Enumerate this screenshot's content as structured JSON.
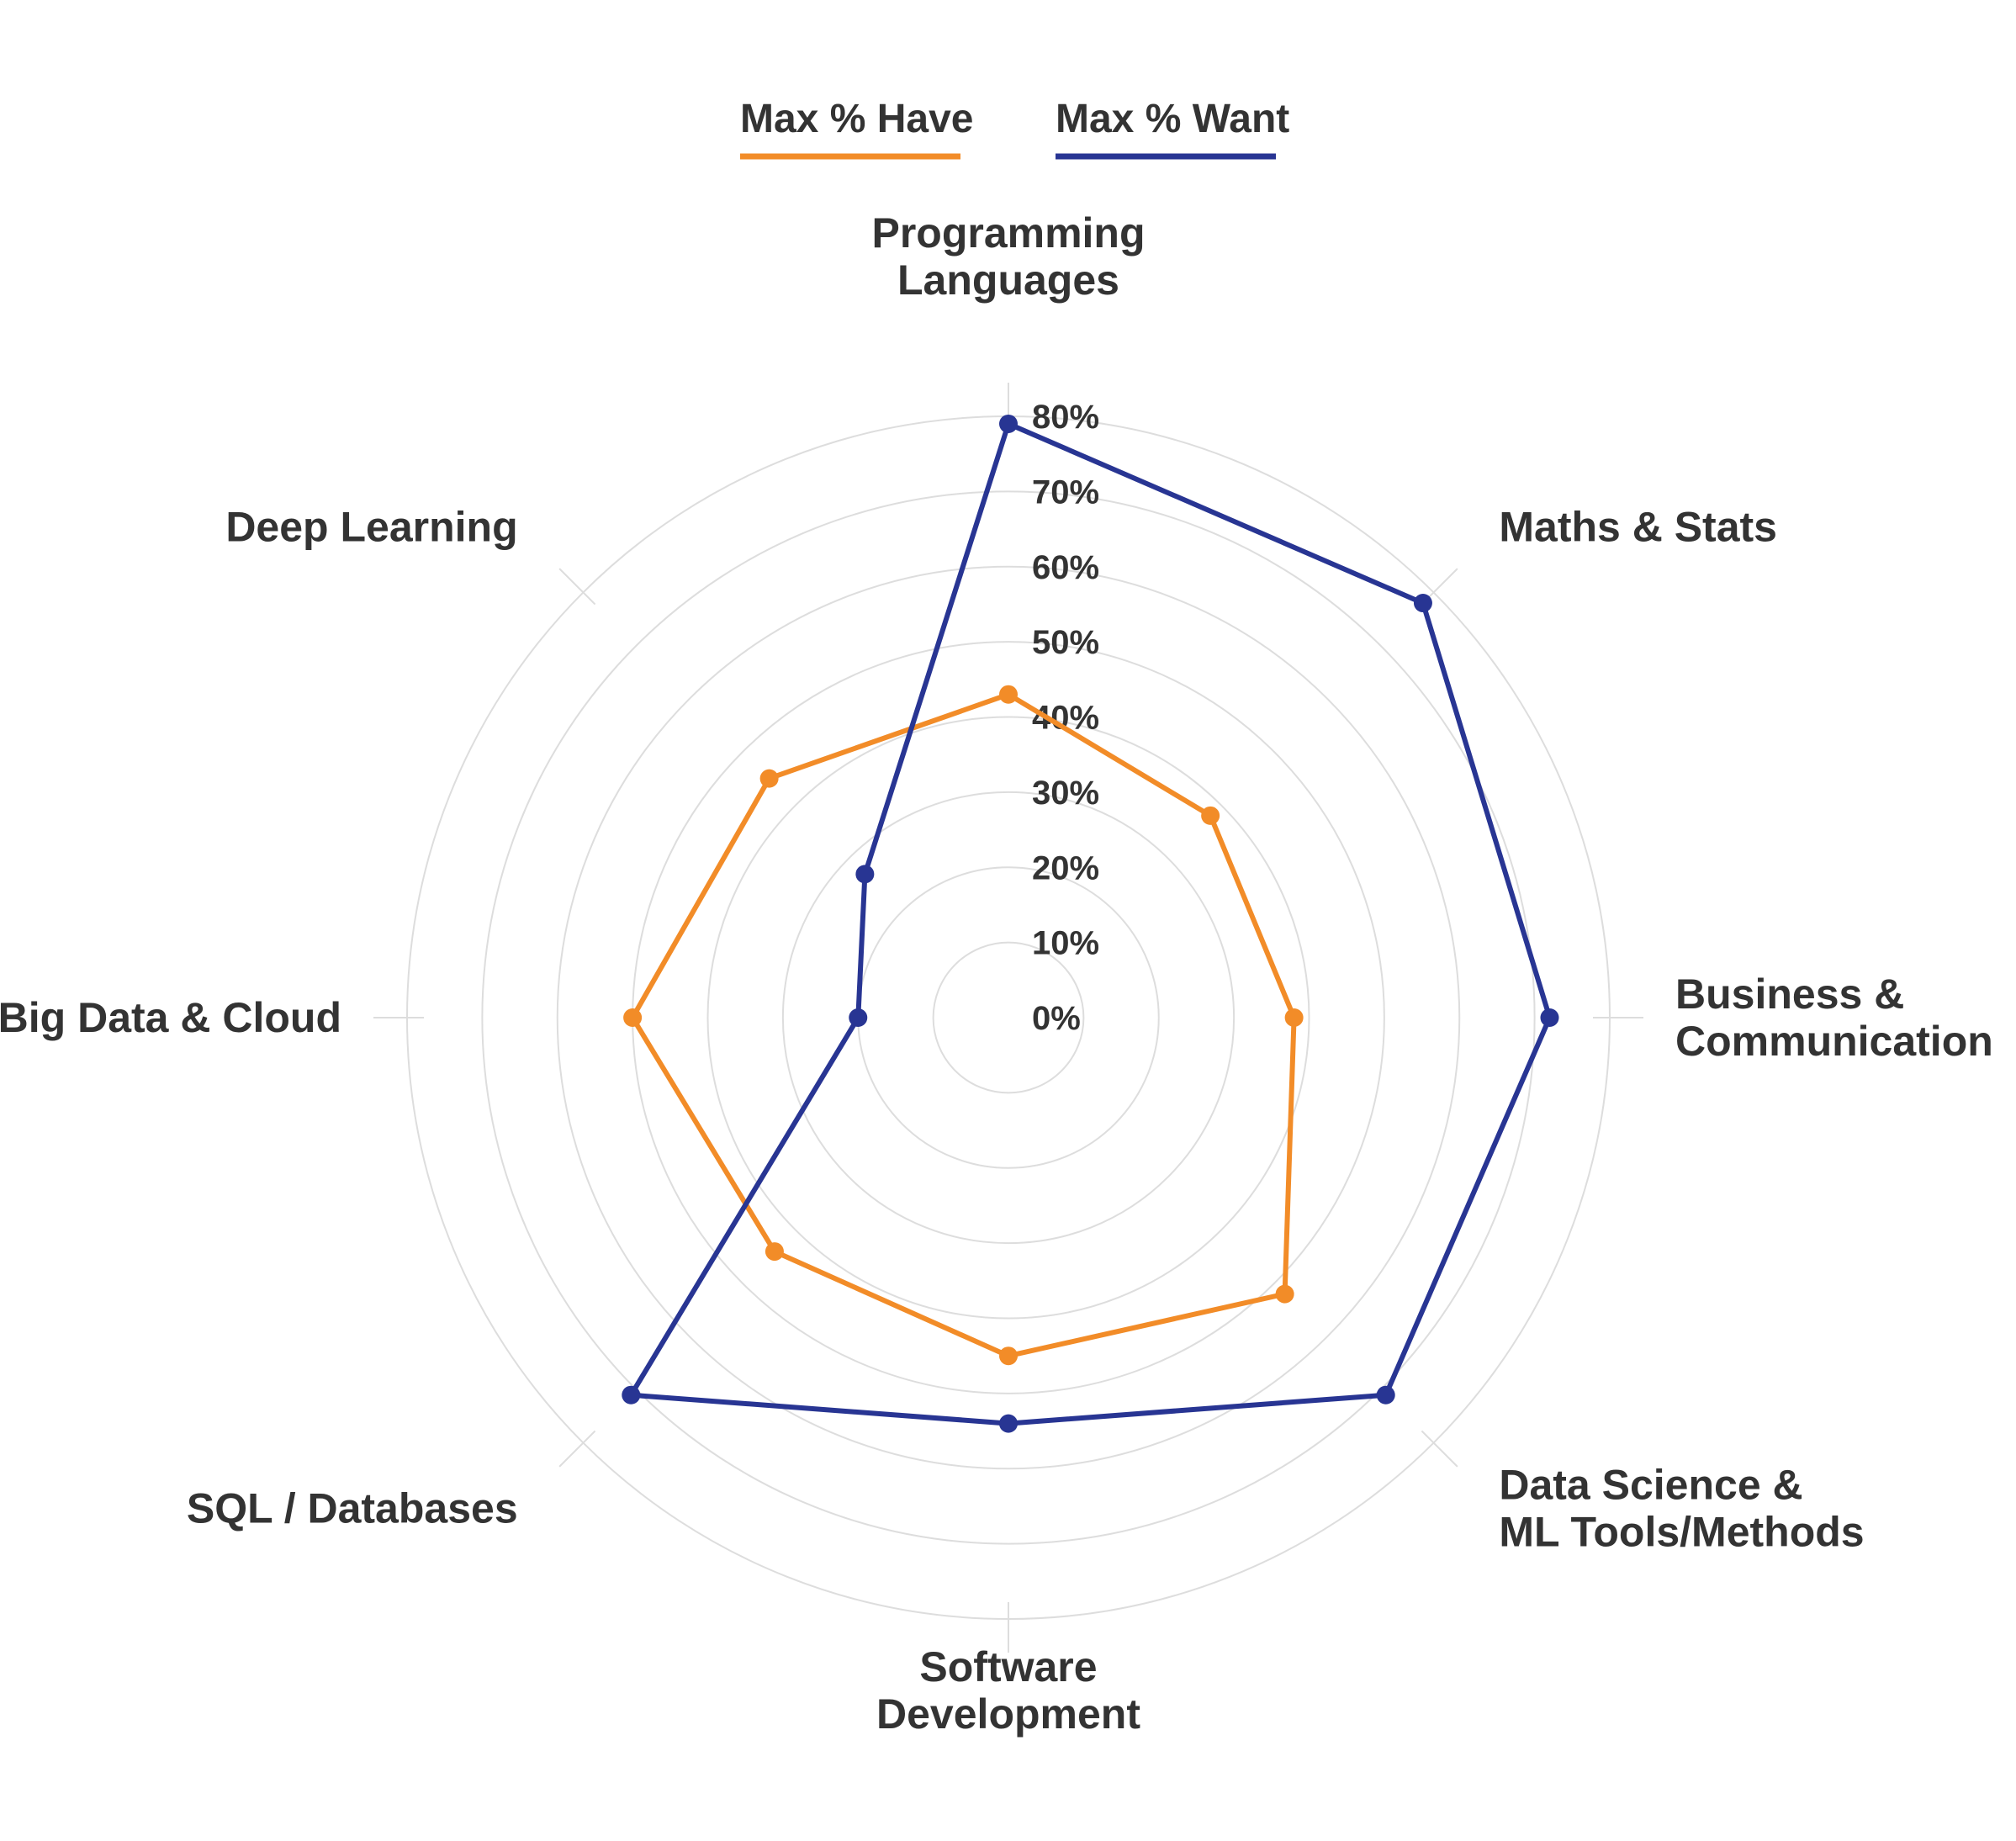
{
  "chart_data": {
    "type": "radar",
    "axes": [
      [
        "Programming",
        "Languages"
      ],
      [
        "Maths & Stats"
      ],
      [
        "Business &",
        "Communication"
      ],
      [
        "Data Science &",
        "ML Tools/Methods"
      ],
      [
        "Software",
        "Development"
      ],
      [
        "SQL / Databases"
      ],
      [
        "Big Data & Cloud"
      ],
      [
        "Deep Learning"
      ]
    ],
    "rlim": [
      0,
      80
    ],
    "ticks": [
      "0%",
      "10%",
      "20%",
      "30%",
      "40%",
      "50%",
      "60%",
      "70%",
      "80%"
    ],
    "grid": true,
    "legend_position": "top",
    "series": [
      {
        "name": "Max % Have",
        "color": "#F28C28",
        "values": [
          43,
          38,
          38,
          52,
          45,
          44,
          50,
          45
        ]
      },
      {
        "name": "Max % Want",
        "color": "#283593",
        "values": [
          79,
          78,
          72,
          71,
          54,
          71,
          20,
          27
        ]
      }
    ]
  }
}
